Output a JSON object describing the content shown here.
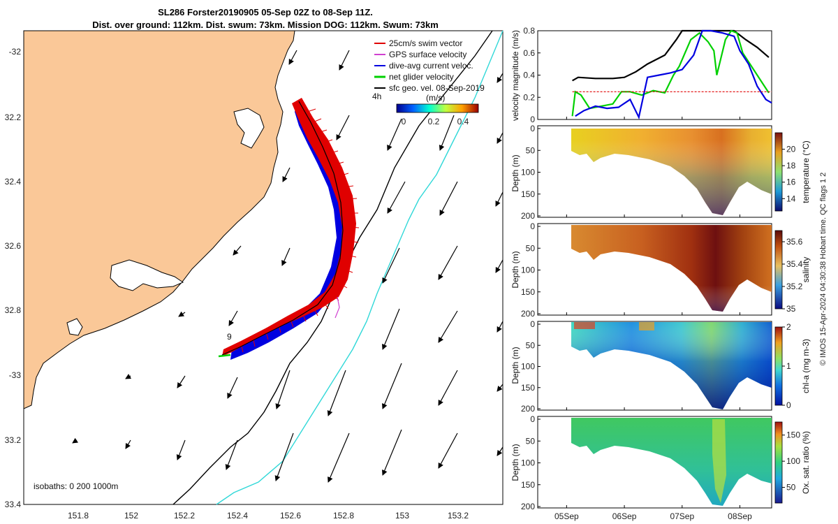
{
  "title_line1": "SL286 Forster20190905 05-Sep 02Z to 08-Sep 11Z.",
  "title_line2": "Dist. over ground: 112km. Dist. swum: 73km. Mission DOG: 112km. Swum: 73km",
  "colors": {
    "land": "#fac898",
    "swim_vector": "#e00000",
    "gps_velocity": "#d040d0",
    "current": "#0000e0",
    "net_velocity": "#00d000",
    "sfc_geo": "#000000",
    "isobath_200": "#000000",
    "isobath_1000": "#30d8d8"
  },
  "map": {
    "lon_ticks": [
      "151.8",
      "152",
      "152.2",
      "152.4",
      "152.6",
      "152.8",
      "153",
      "153.2"
    ],
    "lat_ticks": [
      "-32",
      "32.2",
      "32.4",
      "32.6",
      "32.8",
      "-33",
      "33.2",
      "33.4"
    ],
    "legend": [
      "25cm/s swim vector",
      "GPS surface velocity",
      "dive-avg current veloc.",
      "net glider velocity",
      "sfc geo. vel. 08-Sep-2019"
    ],
    "legend_duration": "4h",
    "colorbar_unit": "(m/s)",
    "colorbar_ticks": [
      "0",
      "0.2",
      "0.4"
    ],
    "isobaths_label": "isobaths: 0   200  1000m",
    "annotation": "9"
  },
  "chart_data": [
    {
      "type": "line",
      "panel": "velocity",
      "ylabel": "velocity magnitude (m/s)",
      "ylim": [
        0,
        0.8
      ],
      "yticks": [
        "0",
        "0.2",
        "0.4",
        "0.6",
        "0.8"
      ],
      "xlim": [
        4.5,
        8.55
      ],
      "series": [
        {
          "color": "#000000",
          "points": [
            [
              5.1,
              0.35
            ],
            [
              5.2,
              0.38
            ],
            [
              5.5,
              0.37
            ],
            [
              5.8,
              0.37
            ],
            [
              6.0,
              0.38
            ],
            [
              6.2,
              0.43
            ],
            [
              6.4,
              0.5
            ],
            [
              6.7,
              0.58
            ],
            [
              6.9,
              0.72
            ],
            [
              7.0,
              0.8
            ],
            [
              7.5,
              0.8
            ],
            [
              7.7,
              0.8
            ],
            [
              7.9,
              0.8
            ],
            [
              8.1,
              0.72
            ],
            [
              8.3,
              0.65
            ],
            [
              8.5,
              0.56
            ]
          ]
        },
        {
          "color": "#00d000",
          "points": [
            [
              5.1,
              0.03
            ],
            [
              5.15,
              0.25
            ],
            [
              5.25,
              0.22
            ],
            [
              5.4,
              0.1
            ],
            [
              5.6,
              0.12
            ],
            [
              5.8,
              0.14
            ],
            [
              5.95,
              0.25
            ],
            [
              6.1,
              0.25
            ],
            [
              6.3,
              0.22
            ],
            [
              6.5,
              0.26
            ],
            [
              6.7,
              0.24
            ],
            [
              6.85,
              0.4
            ],
            [
              6.95,
              0.48
            ],
            [
              7.05,
              0.6
            ],
            [
              7.15,
              0.72
            ],
            [
              7.3,
              0.78
            ],
            [
              7.45,
              0.7
            ],
            [
              7.55,
              0.62
            ],
            [
              7.6,
              0.4
            ],
            [
              7.75,
              0.72
            ],
            [
              7.85,
              0.8
            ],
            [
              7.95,
              0.78
            ],
            [
              8.05,
              0.6
            ],
            [
              8.15,
              0.52
            ],
            [
              8.3,
              0.4
            ],
            [
              8.5,
              0.24
            ]
          ]
        },
        {
          "color": "#0000e0",
          "points": [
            [
              5.15,
              0.03
            ],
            [
              5.3,
              0.08
            ],
            [
              5.5,
              0.12
            ],
            [
              5.7,
              0.1
            ],
            [
              5.9,
              0.11
            ],
            [
              6.1,
              0.18
            ],
            [
              6.25,
              0.02
            ],
            [
              6.4,
              0.38
            ],
            [
              6.6,
              0.4
            ],
            [
              6.8,
              0.42
            ],
            [
              7.0,
              0.45
            ],
            [
              7.2,
              0.58
            ],
            [
              7.35,
              0.8
            ],
            [
              7.5,
              0.8
            ],
            [
              7.7,
              0.78
            ],
            [
              7.9,
              0.75
            ],
            [
              8.0,
              0.62
            ],
            [
              8.15,
              0.5
            ],
            [
              8.3,
              0.3
            ],
            [
              8.45,
              0.18
            ],
            [
              8.55,
              0.15
            ]
          ]
        },
        {
          "color": "#e00000",
          "points": [
            [
              5.1,
              0.25
            ],
            [
              8.55,
              0.25
            ]
          ]
        }
      ]
    },
    {
      "type": "heatmap",
      "panel": "temperature",
      "ylabel": "Depth (m)",
      "colorbar_label": "temperature (°C)",
      "yticks": [
        "0",
        "50",
        "100",
        "150",
        "200"
      ],
      "colorbar_ticks": [
        "14",
        "16",
        "18",
        "20"
      ],
      "clim": [
        12.5,
        22
      ]
    },
    {
      "type": "heatmap",
      "panel": "salinity",
      "ylabel": "Depth (m)",
      "colorbar_label": "salinity",
      "yticks": [
        "0",
        "50",
        "100",
        "150",
        "200"
      ],
      "colorbar_ticks": [
        "35",
        "35.2",
        "35.4",
        "35.6"
      ],
      "clim": [
        35,
        35.7
      ]
    },
    {
      "type": "heatmap",
      "panel": "chl-a",
      "ylabel": "Depth (m)",
      "colorbar_label": "chl-a (mg m-3)",
      "yticks": [
        "0",
        "50",
        "100",
        "150",
        "200"
      ],
      "colorbar_ticks": [
        "0",
        "1",
        "2"
      ],
      "clim": [
        0,
        2
      ]
    },
    {
      "type": "heatmap",
      "panel": "oxygen",
      "ylabel": "Depth (m)",
      "colorbar_label": "Ox. sat. ratio (%)",
      "yticks": [
        "0",
        "50",
        "100",
        "150",
        "200"
      ],
      "colorbar_ticks": [
        "50",
        "100",
        "150"
      ],
      "clim": [
        20,
        175
      ]
    }
  ],
  "time_ticks": [
    "05Sep",
    "06Sep",
    "07Sep",
    "08Sep"
  ],
  "side_note": "© IMOS 15-Apr-2024 04:30:38 Hobart time. QC flags 1  2"
}
